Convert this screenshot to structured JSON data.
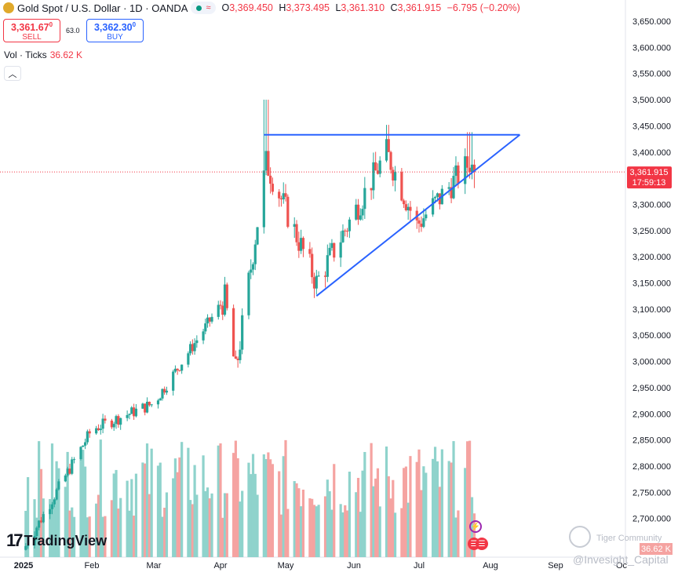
{
  "header": {
    "symbol": "Gold Spot / U.S. Dollar · 1D · OANDA",
    "ohlc": [
      {
        "label": "O",
        "value": "3,369.450"
      },
      {
        "label": "H",
        "value": "3,373.495"
      },
      {
        "label": "L",
        "value": "3,361.310"
      },
      {
        "label": "C",
        "value": "3,361.915"
      }
    ],
    "change": "−6.795 (−0.20%)"
  },
  "trade": {
    "sell_price": "3,361.67",
    "sell_sup": "0",
    "sell_label": "SELL",
    "spread": "63.0",
    "buy_price": "3,362.30",
    "buy_sup": "0",
    "buy_label": "BUY"
  },
  "volume": {
    "label": "Vol · Ticks",
    "value": "36.62 K"
  },
  "price_tag": {
    "price": "3,361.915",
    "countdown": "17:59:13"
  },
  "vol_tag": "36.62 K",
  "branding": {
    "logo_text": "TradingView"
  },
  "watermarks": {
    "community": "Tiger Community",
    "author": "@Invesight_Capital"
  },
  "colors": {
    "up": "#26a69a",
    "down": "#ef5350",
    "vol_up": "#8fd3cc",
    "vol_down": "#f5a3a1",
    "trendline": "#2962ff",
    "price_line": "#f23645"
  },
  "chart_data": {
    "type": "candlestick",
    "y_axis": {
      "min": 2650,
      "max": 3650,
      "ticks": [
        "3,650.000",
        "3,600.000",
        "3,550.000",
        "3,500.000",
        "3,450.000",
        "3,400.000",
        "3,350.000",
        "3,300.000",
        "3,250.000",
        "3,200.000",
        "3,150.000",
        "3,100.000",
        "3,050.000",
        "3,000.000",
        "2,950.000",
        "2,900.000",
        "2,850.000",
        "2,800.000",
        "2,750.000",
        "2,700.000"
      ]
    },
    "x_axis": {
      "ticks": [
        "2025",
        "Feb",
        "Mar",
        "Apr",
        "May",
        "Jun",
        "Jul",
        "Aug",
        "Sep",
        "Oc"
      ]
    },
    "key_points": [
      {
        "date": "2025-01",
        "close": 2640
      },
      {
        "date": "2025-02",
        "close": 2870
      },
      {
        "date": "2025-03",
        "close": 2920
      },
      {
        "date": "2025-04-03",
        "close": 3120
      },
      {
        "date": "2025-04-08",
        "close": 2980
      },
      {
        "date": "2025-04-22",
        "high": 3500,
        "close": 3380
      },
      {
        "date": "2025-05-15",
        "close": 3150
      },
      {
        "date": "2025-06-16",
        "high": 3452,
        "close": 3400
      },
      {
        "date": "2025-06-30",
        "close": 3260
      },
      {
        "date": "2025-07-23",
        "high": 3438,
        "close": 3380
      },
      {
        "date": "2025-07-25",
        "close": 3361.915
      }
    ],
    "resistance_line": {
      "price": 3433,
      "from": "2025-04-21",
      "to": "2025-08-15"
    },
    "support_line": {
      "from": {
        "date": "2025-05-15",
        "price": 3125
      },
      "to": {
        "date": "2025-08-15",
        "price": 3433
      }
    },
    "last_price": 3361.915
  }
}
